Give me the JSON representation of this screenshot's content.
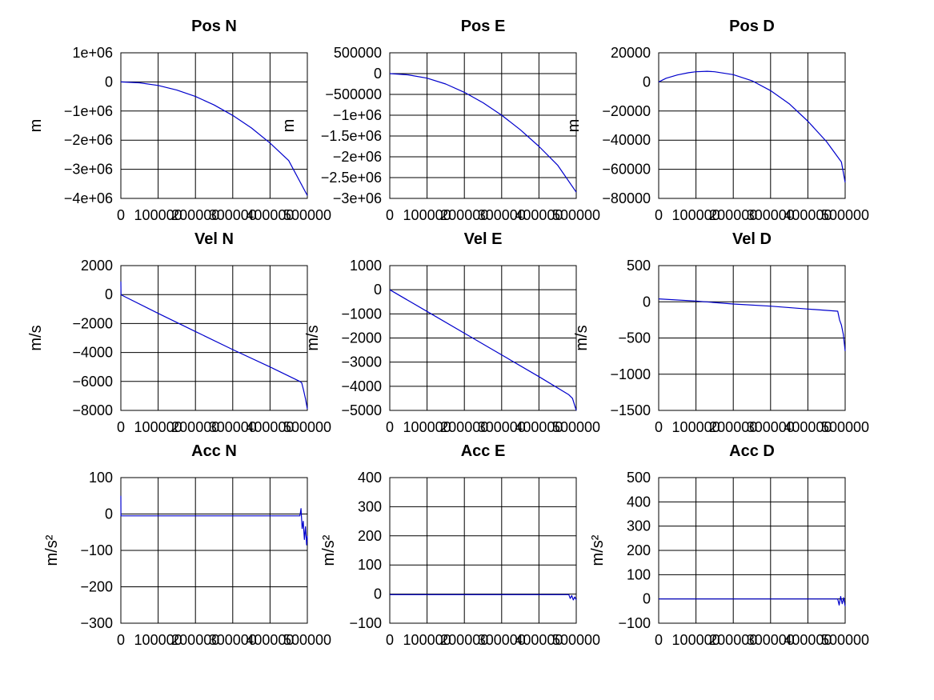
{
  "colors": {
    "series": "#0000cc",
    "grid": "#000000",
    "background": "#ffffff"
  },
  "chart_data": [
    {
      "type": "line",
      "title": "Pos N",
      "ylabel": "m",
      "xlim": [
        0,
        500000
      ],
      "ylim": [
        -4000000,
        1000000
      ],
      "grid": true,
      "x_ticks": [
        0,
        100000,
        200000,
        300000,
        400000,
        500000
      ],
      "x_tick_labels": [
        "0",
        "100000",
        "200000",
        "300000",
        "400000",
        "500000"
      ],
      "y_ticks": [
        1000000,
        0,
        -1000000,
        -2000000,
        -3000000,
        -4000000
      ],
      "y_tick_labels": [
        "1e+06",
        "0",
        "−1e+06",
        "−2e+06",
        "−3e+06",
        "−4e+06"
      ],
      "series": [
        {
          "x": [
            0,
            50000,
            100000,
            150000,
            200000,
            250000,
            300000,
            350000,
            400000,
            450000,
            500000
          ],
          "values": [
            0,
            -30000,
            -120000,
            -280000,
            -500000,
            -790000,
            -1150000,
            -1580000,
            -2100000,
            -2700000,
            -3900000
          ]
        }
      ]
    },
    {
      "type": "line",
      "title": "Pos E",
      "ylabel": "m",
      "xlim": [
        0,
        500000
      ],
      "ylim": [
        -3000000,
        500000
      ],
      "grid": true,
      "x_ticks": [
        0,
        100000,
        200000,
        300000,
        400000,
        500000
      ],
      "x_tick_labels": [
        "0",
        "100000",
        "200000",
        "300000",
        "400000",
        "500000"
      ],
      "y_ticks": [
        500000,
        0,
        -500000,
        -1000000,
        -1500000,
        -2000000,
        -2500000,
        -3000000
      ],
      "y_tick_labels": [
        "500000",
        "0",
        "−500000",
        "−1e+06",
        "−1.5e+06",
        "−2e+06",
        "−2.5e+06",
        "−3e+06"
      ],
      "series": [
        {
          "x": [
            0,
            50000,
            100000,
            150000,
            200000,
            250000,
            300000,
            350000,
            400000,
            450000,
            500000
          ],
          "values": [
            0,
            -30000,
            -110000,
            -250000,
            -450000,
            -700000,
            -1000000,
            -1350000,
            -1750000,
            -2200000,
            -2850000
          ]
        }
      ]
    },
    {
      "type": "line",
      "title": "Pos D",
      "ylabel": "m",
      "xlim": [
        0,
        500000
      ],
      "ylim": [
        -80000,
        20000
      ],
      "grid": true,
      "x_ticks": [
        0,
        100000,
        200000,
        300000,
        400000,
        500000
      ],
      "x_tick_labels": [
        "0",
        "100000",
        "200000",
        "300000",
        "400000",
        "500000"
      ],
      "y_ticks": [
        20000,
        0,
        -20000,
        -40000,
        -60000,
        -80000
      ],
      "y_tick_labels": [
        "20000",
        "0",
        "−20000",
        "−40000",
        "−60000",
        "−80000"
      ],
      "series": [
        {
          "x": [
            0,
            20000,
            50000,
            80000,
            100000,
            130000,
            150000,
            200000,
            250000,
            300000,
            350000,
            400000,
            450000,
            490000,
            500000
          ],
          "values": [
            0,
            2500,
            4800,
            6300,
            7000,
            7300,
            7000,
            5000,
            800,
            -6000,
            -15000,
            -27000,
            -41000,
            -55000,
            -69000
          ]
        }
      ]
    },
    {
      "type": "line",
      "title": "Vel N",
      "ylabel": "m/s",
      "xlim": [
        0,
        500000
      ],
      "ylim": [
        -8000,
        2000
      ],
      "grid": true,
      "x_ticks": [
        0,
        100000,
        200000,
        300000,
        400000,
        500000
      ],
      "x_tick_labels": [
        "0",
        "100000",
        "200000",
        "300000",
        "400000",
        "500000"
      ],
      "y_ticks": [
        2000,
        0,
        -2000,
        -4000,
        -6000,
        -8000
      ],
      "y_tick_labels": [
        "2000",
        "0",
        "−2000",
        "−4000",
        "−6000",
        "−8000"
      ],
      "series": [
        {
          "x": [
            0,
            500,
            1000,
            100000,
            200000,
            300000,
            400000,
            480000,
            485000,
            490000,
            495000,
            500000
          ],
          "values": [
            900,
            0,
            -20,
            -1300,
            -2550,
            -3800,
            -5000,
            -6000,
            -6100,
            -6600,
            -7200,
            -7900
          ]
        }
      ]
    },
    {
      "type": "line",
      "title": "Vel E",
      "ylabel": "m/s",
      "xlim": [
        0,
        500000
      ],
      "ylim": [
        -5000,
        1000
      ],
      "grid": true,
      "x_ticks": [
        0,
        100000,
        200000,
        300000,
        400000,
        500000
      ],
      "x_tick_labels": [
        "0",
        "100000",
        "200000",
        "300000",
        "400000",
        "500000"
      ],
      "y_ticks": [
        1000,
        0,
        -1000,
        -2000,
        -3000,
        -4000,
        -5000
      ],
      "y_tick_labels": [
        "1000",
        "0",
        "−1000",
        "−2000",
        "−3000",
        "−4000",
        "−5000"
      ],
      "series": [
        {
          "x": [
            0,
            100000,
            200000,
            300000,
            400000,
            480000,
            490000,
            500000
          ],
          "values": [
            0,
            -900,
            -1800,
            -2700,
            -3600,
            -4350,
            -4500,
            -5000
          ]
        }
      ]
    },
    {
      "type": "line",
      "title": "Vel D",
      "ylabel": "m/s",
      "xlim": [
        0,
        500000
      ],
      "ylim": [
        -1500,
        500
      ],
      "grid": true,
      "x_ticks": [
        0,
        100000,
        200000,
        300000,
        400000,
        500000
      ],
      "x_tick_labels": [
        "0",
        "100000",
        "200000",
        "300000",
        "400000",
        "500000"
      ],
      "y_ticks": [
        500,
        0,
        -500,
        -1000,
        -1500
      ],
      "y_tick_labels": [
        "500",
        "0",
        "−500",
        "−1000",
        "−1500"
      ],
      "series": [
        {
          "x": [
            0,
            100000,
            200000,
            300000,
            400000,
            480000,
            485000,
            490000,
            495000,
            500000
          ],
          "values": [
            40,
            10,
            -30,
            -60,
            -100,
            -130,
            -250,
            -320,
            -450,
            -680
          ]
        }
      ]
    },
    {
      "type": "line",
      "title": "Acc N",
      "ylabel": "m/s²",
      "xlim": [
        0,
        500000
      ],
      "ylim": [
        -300,
        100
      ],
      "grid": true,
      "x_ticks": [
        0,
        100000,
        200000,
        300000,
        400000,
        500000
      ],
      "x_tick_labels": [
        "0",
        "100000",
        "200000",
        "300000",
        "400000",
        "500000"
      ],
      "y_ticks": [
        100,
        0,
        -100,
        -200,
        -300
      ],
      "y_tick_labels": [
        "100",
        "0",
        "−100",
        "−200",
        "−300"
      ],
      "series": [
        {
          "x": [
            0,
            200,
            400,
            800,
            100000,
            200000,
            300000,
            400000,
            480000,
            483000,
            486000,
            489000,
            492000,
            495000,
            498000,
            500000
          ],
          "values": [
            50,
            -5,
            -5,
            -5,
            -5,
            -5,
            -5,
            -5,
            -5,
            15,
            -40,
            -20,
            -70,
            -35,
            -85,
            -60
          ]
        }
      ]
    },
    {
      "type": "line",
      "title": "Acc E",
      "ylabel": "m/s²",
      "xlim": [
        0,
        500000
      ],
      "ylim": [
        -100,
        400
      ],
      "grid": true,
      "x_ticks": [
        0,
        100000,
        200000,
        300000,
        400000,
        500000
      ],
      "x_tick_labels": [
        "0",
        "100000",
        "200000",
        "300000",
        "400000",
        "500000"
      ],
      "y_ticks": [
        400,
        300,
        200,
        100,
        0,
        -100
      ],
      "y_tick_labels": [
        "400",
        "300",
        "200",
        "100",
        "0",
        "−100"
      ],
      "series": [
        {
          "x": [
            0,
            100000,
            200000,
            300000,
            400000,
            480000,
            484000,
            488000,
            492000,
            496000,
            500000
          ],
          "values": [
            -2,
            -2,
            -2,
            -2,
            -2,
            -2,
            -15,
            -5,
            -20,
            -10,
            -20
          ]
        }
      ]
    },
    {
      "type": "line",
      "title": "Acc D",
      "ylabel": "m/s²",
      "xlim": [
        0,
        500000
      ],
      "ylim": [
        -100,
        500
      ],
      "grid": true,
      "x_ticks": [
        0,
        100000,
        200000,
        300000,
        400000,
        500000
      ],
      "x_tick_labels": [
        "0",
        "100000",
        "200000",
        "300000",
        "400000",
        "500000"
      ],
      "y_ticks": [
        500,
        400,
        300,
        200,
        100,
        0,
        -100
      ],
      "y_tick_labels": [
        "500",
        "400",
        "300",
        "200",
        "100",
        "0",
        "−100"
      ],
      "series": [
        {
          "x": [
            0,
            100000,
            200000,
            300000,
            400000,
            480000,
            484000,
            488000,
            492000,
            496000,
            500000
          ],
          "values": [
            0,
            0,
            0,
            0,
            0,
            0,
            -25,
            10,
            -20,
            5,
            -30
          ]
        }
      ]
    }
  ]
}
